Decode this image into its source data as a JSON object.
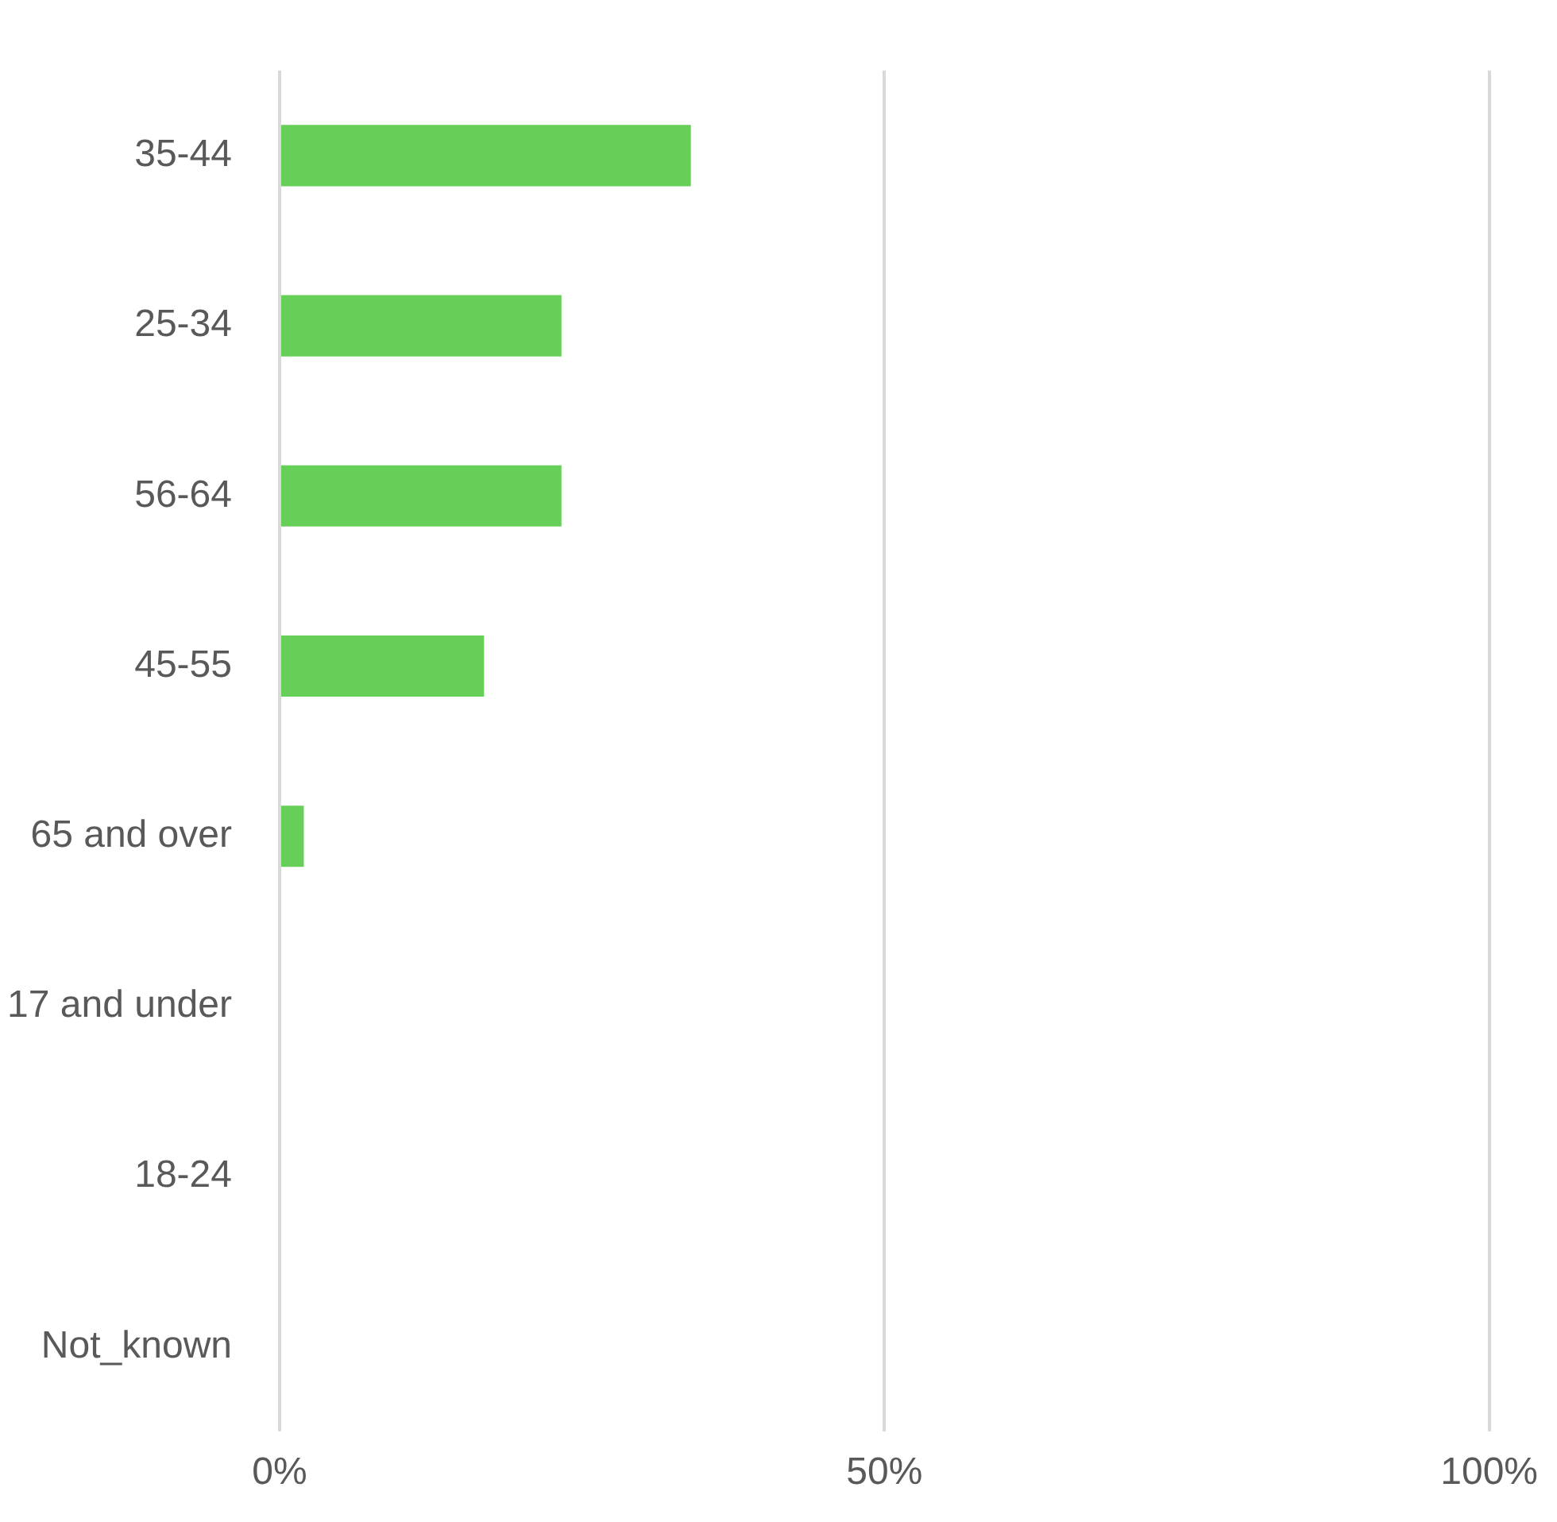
{
  "chart_data": {
    "type": "bar",
    "orientation": "horizontal",
    "categories": [
      "35-44",
      "25-34",
      "56-64",
      "45-55",
      "65 and over",
      "17 and under",
      "18-24",
      "Not_known"
    ],
    "values": [
      34,
      23.3,
      23.3,
      16.9,
      2,
      0,
      0,
      0
    ],
    "color": "#66cf57",
    "xlim": [
      0,
      100
    ],
    "xticks": [
      {
        "value": 0,
        "label": "0%"
      },
      {
        "value": 50,
        "label": "50%"
      },
      {
        "value": 100,
        "label": "100%"
      }
    ],
    "grid": "x",
    "legend": false
  }
}
